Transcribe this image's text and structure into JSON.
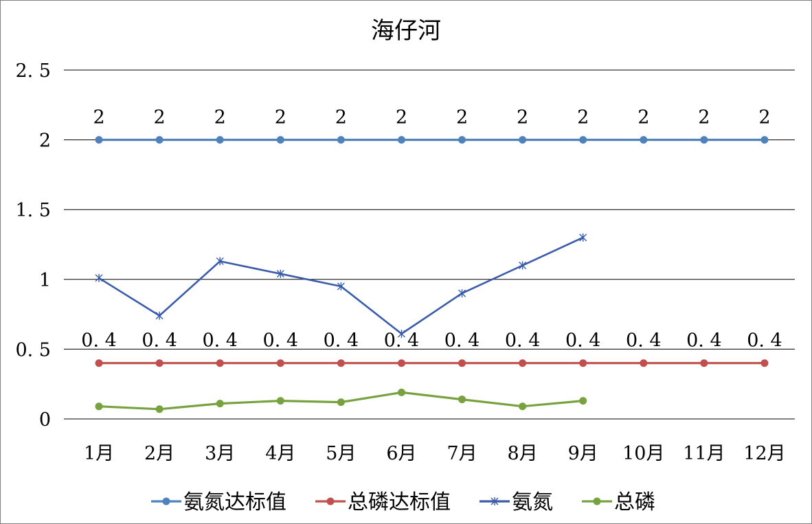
{
  "chart_data": {
    "type": "line",
    "title": "海仔河",
    "xlabel": "",
    "ylabel": "",
    "ylim": [
      0,
      2.5
    ],
    "y_ticks": [
      "0",
      "0.5",
      "1",
      "1.5",
      "2",
      "2.5"
    ],
    "y_tick_values": [
      0,
      0.5,
      1,
      1.5,
      2,
      2.5
    ],
    "categories": [
      "1月",
      "2月",
      "3月",
      "4月",
      "5月",
      "6月",
      "7月",
      "8月",
      "9月",
      "10月",
      "11月",
      "12月"
    ],
    "grid": "horizontal",
    "legend_position": "bottom",
    "series": [
      {
        "name": "氨氮达标值",
        "color": "#4f81bd",
        "marker": "circle",
        "values": [
          2,
          2,
          2,
          2,
          2,
          2,
          2,
          2,
          2,
          2,
          2,
          2
        ],
        "data_labels": [
          "2",
          "2",
          "2",
          "2",
          "2",
          "2",
          "2",
          "2",
          "2",
          "2",
          "2",
          "2"
        ]
      },
      {
        "name": "总磷达标值",
        "color": "#c0504d",
        "marker": "circle",
        "values": [
          0.4,
          0.4,
          0.4,
          0.4,
          0.4,
          0.4,
          0.4,
          0.4,
          0.4,
          0.4,
          0.4,
          0.4
        ],
        "data_labels": [
          "0.4",
          "0.4",
          "0.4",
          "0.4",
          "0.4",
          "0.4",
          "0.4",
          "0.4",
          "0.4",
          "0.4",
          "0.4",
          "0.4"
        ]
      },
      {
        "name": "氨氮",
        "color": "#3a5ba9",
        "marker": "star",
        "values": [
          1.01,
          0.74,
          1.13,
          1.04,
          0.95,
          0.61,
          0.9,
          1.1,
          1.3,
          null,
          null,
          null
        ]
      },
      {
        "name": "总磷",
        "color": "#77a23f",
        "marker": "circle",
        "values": [
          0.09,
          0.07,
          0.11,
          0.13,
          0.12,
          0.19,
          0.14,
          0.09,
          0.13,
          null,
          null,
          null
        ]
      }
    ]
  }
}
